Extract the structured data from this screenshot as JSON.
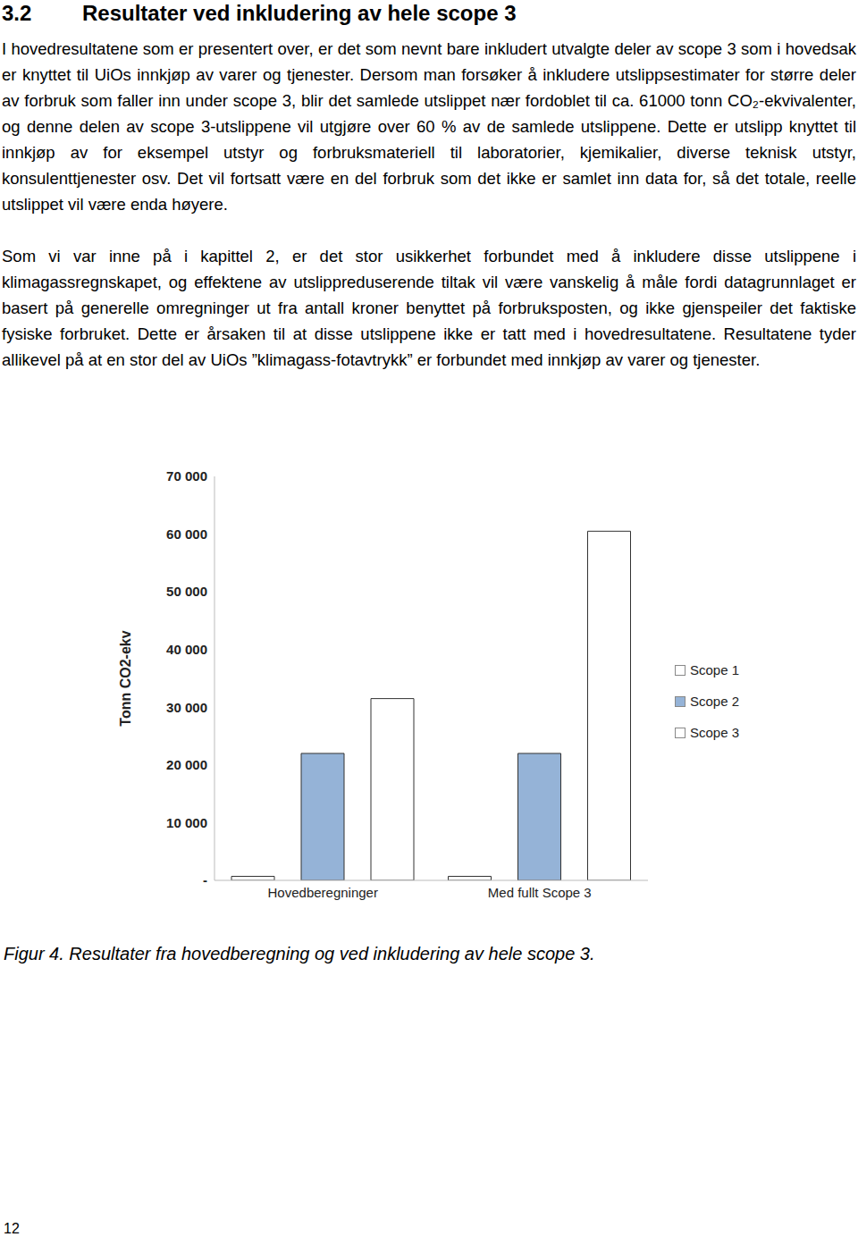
{
  "heading": {
    "number": "3.2",
    "title": "Resultater ved inkludering av hele scope 3"
  },
  "paragraphs": [
    "I hovedresultatene som er presentert over, er det som nevnt bare inkludert utvalgte deler av scope 3 som i hovedsak er knyttet til UiOs innkjøp av varer og tjenester. Dersom man forsøker å inkludere utslippsestimater for større deler av forbruk som faller inn under scope 3, blir det samlede utslippet nær fordoblet til ca. 61000 tonn CO₂-ekvivalenter, og denne delen av scope 3-utslippene vil utgjøre over 60 % av de samlede utslippene. Dette er utslipp knyttet til innkjøp av for eksempel utstyr og forbruksmateriell til laboratorier, kjemikalier, diverse teknisk utstyr, konsulenttjenester osv. Det vil fortsatt være en del forbruk som det ikke er samlet inn data for, så det totale, reelle utslippet vil være enda høyere.",
    "Som vi var inne på i kapittel 2, er det stor usikkerhet forbundet med å inkludere disse utslippene i klimagassregnskapet, og effektene av utslippreduserende tiltak vil være vanskelig å måle fordi datagrunnlaget er basert på generelle omregninger ut fra antall kroner benyttet på forbruksposten, og ikke gjenspeiler det faktiske fysiske forbruket. Dette er årsaken til at disse utslippene ikke er tatt med i hovedresultatene. Resultatene tyder allikevel på at en stor del av UiOs ”klimagass-fotavtrykk” er forbundet med innkjøp av varer og tjenester."
  ],
  "chart_data": {
    "type": "bar",
    "y_label": "Tonn CO2-ekv",
    "categories": [
      "Hovedberegninger",
      "Med fullt Scope 3"
    ],
    "series": [
      {
        "name": "Scope 1",
        "color": "#ffffff",
        "values": [
          700,
          700
        ]
      },
      {
        "name": "Scope 2",
        "color": "#95b3d7",
        "values": [
          22000,
          22000
        ]
      },
      {
        "name": "Scope 3",
        "color": "#ffffff",
        "values": [
          31500,
          60500
        ]
      }
    ],
    "ylim": [
      0,
      70000
    ],
    "yticks": [
      {
        "value": 0,
        "label": "-"
      },
      {
        "value": 10000,
        "label": "10 000"
      },
      {
        "value": 20000,
        "label": "20 000"
      },
      {
        "value": 30000,
        "label": "30 000"
      },
      {
        "value": 40000,
        "label": "40 000"
      },
      {
        "value": 50000,
        "label": "50 000"
      },
      {
        "value": 60000,
        "label": "60 000"
      },
      {
        "value": 70000,
        "label": "70 000"
      }
    ],
    "grid": false,
    "legend": "right"
  },
  "caption": "Figur 4. Resultater fra hovedberegning og ved inkludering av hele scope 3.",
  "page_number": "12"
}
